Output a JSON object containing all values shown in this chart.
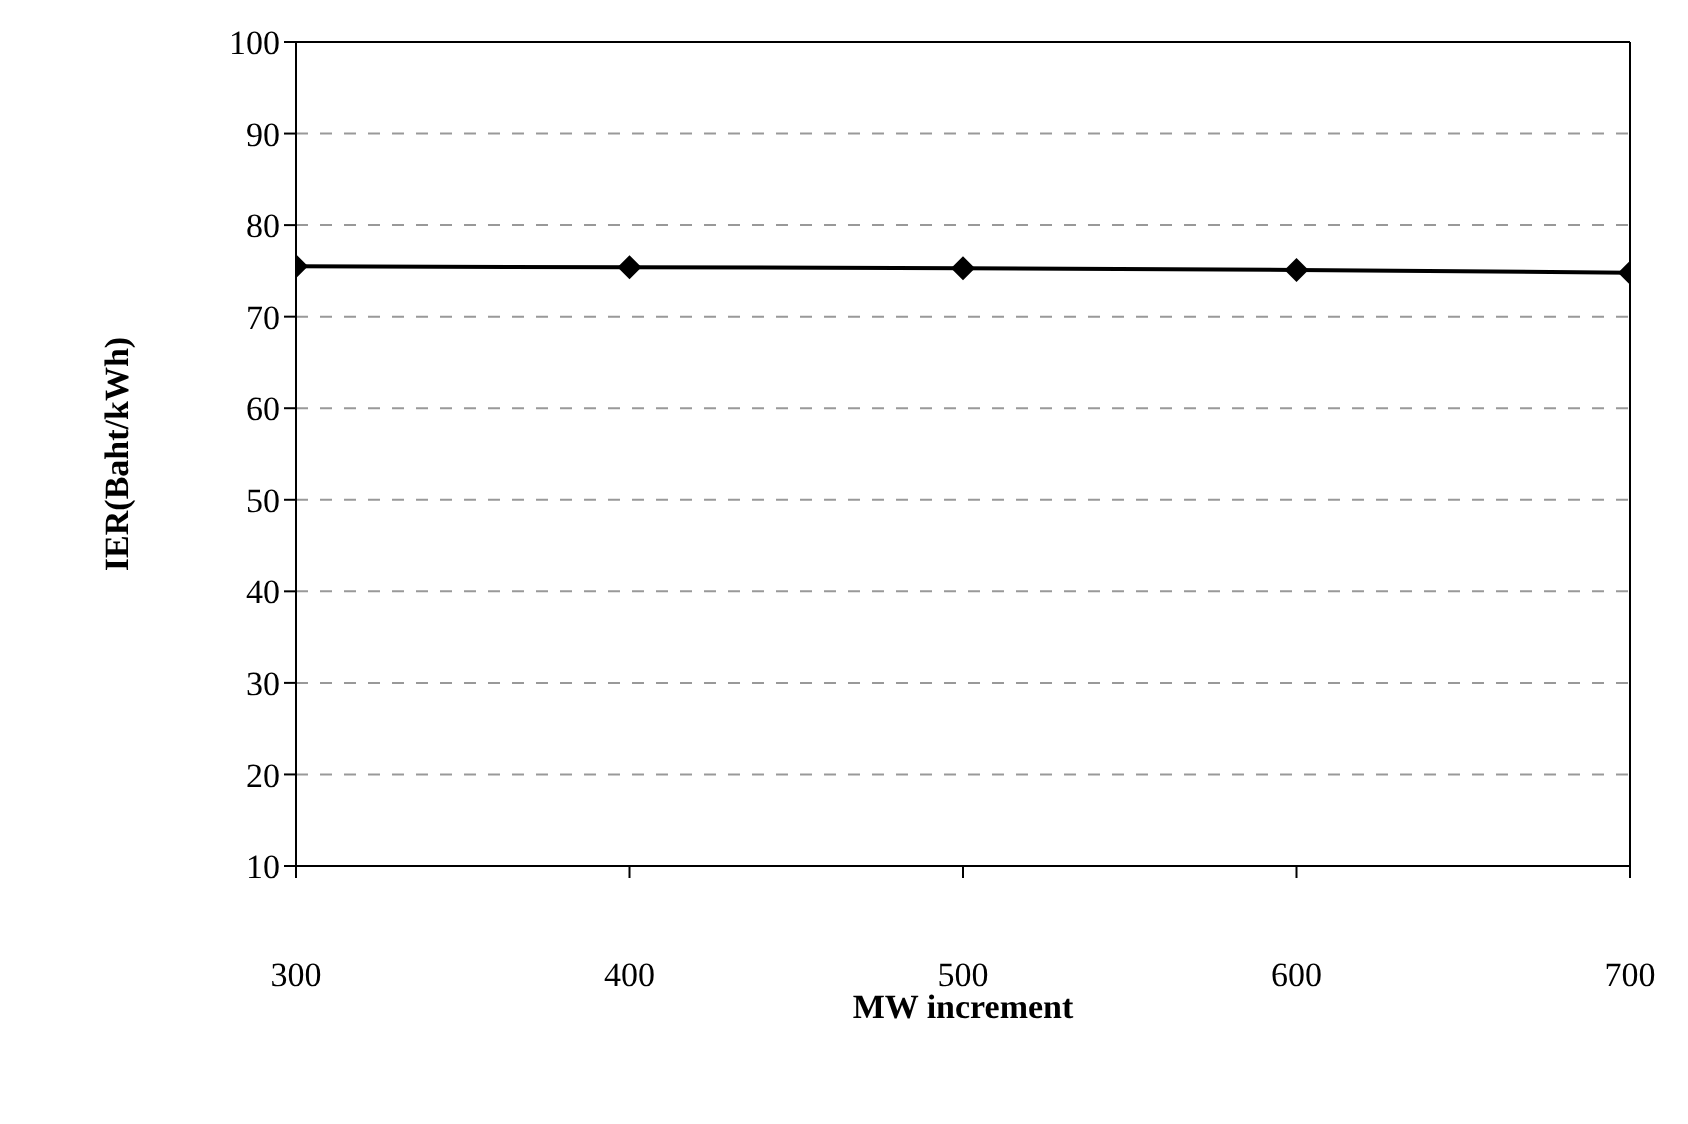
{
  "chart_data": {
    "type": "line",
    "xlabel": "MW increment",
    "ylabel": "IER(Baht/kWh)",
    "x": [
      300,
      400,
      500,
      600,
      700
    ],
    "series": [
      {
        "color": "#000000",
        "values": [
          75.5,
          75.4,
          75.3,
          75.1,
          74.8
        ]
      }
    ],
    "xlim": [
      300,
      700
    ],
    "xticks": [
      300,
      400,
      500,
      600,
      700
    ],
    "ylim": [
      10,
      100
    ],
    "yticks": [
      10,
      20,
      30,
      40,
      50,
      60,
      70,
      80,
      90,
      100
    ],
    "grid": "y",
    "legend": false,
    "marker": "diamond",
    "line_style": "solid"
  }
}
